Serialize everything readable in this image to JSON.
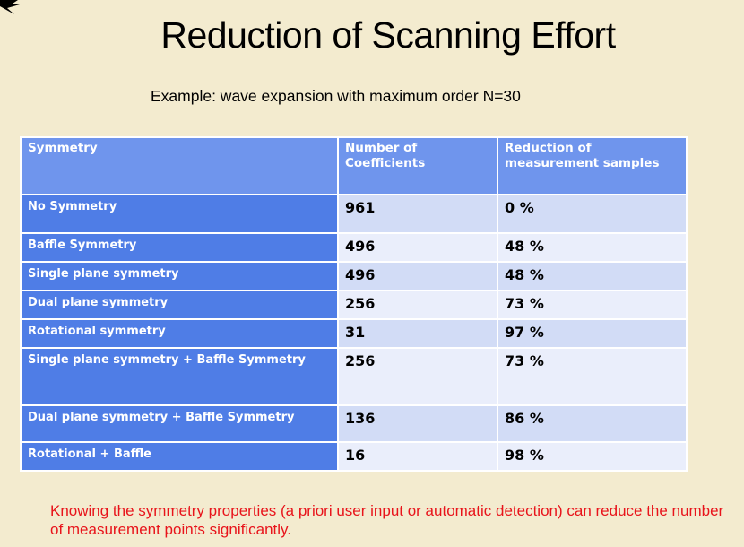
{
  "title": "Reduction of Scanning Effort",
  "subtitle": "Example:  wave expansion with maximum order N=30",
  "table": {
    "headers": [
      "Symmetry",
      "Number of Coefficients",
      "Reduction of measurement samples"
    ],
    "rows": [
      [
        "No Symmetry",
        "961",
        "0 %"
      ],
      [
        "Baffle Symmetry",
        "496",
        "48 %"
      ],
      [
        "Single plane symmetry",
        "496",
        "48 %"
      ],
      [
        "Dual plane symmetry",
        "256",
        "73 %"
      ],
      [
        "Rotational symmetry",
        "31",
        "97 %"
      ],
      [
        "Single plane symmetry + Baffle Symmetry",
        "256",
        "73 %"
      ],
      [
        "Dual plane symmetry + Baffle Symmetry",
        "136",
        "86 %"
      ],
      [
        "Rotational + Baffle",
        "16",
        "98 %"
      ]
    ]
  },
  "note": "Knowing the symmetry properties (a priori user input or automatic detection) can reduce the number of measurement points significantly.",
  "colors": {
    "background": "#f3ebcf",
    "header": "#6f95ed",
    "first_column": "#4f7de6",
    "row_odd": "#d2dcf6",
    "row_even": "#eaeefb",
    "note": "#e8141b"
  }
}
